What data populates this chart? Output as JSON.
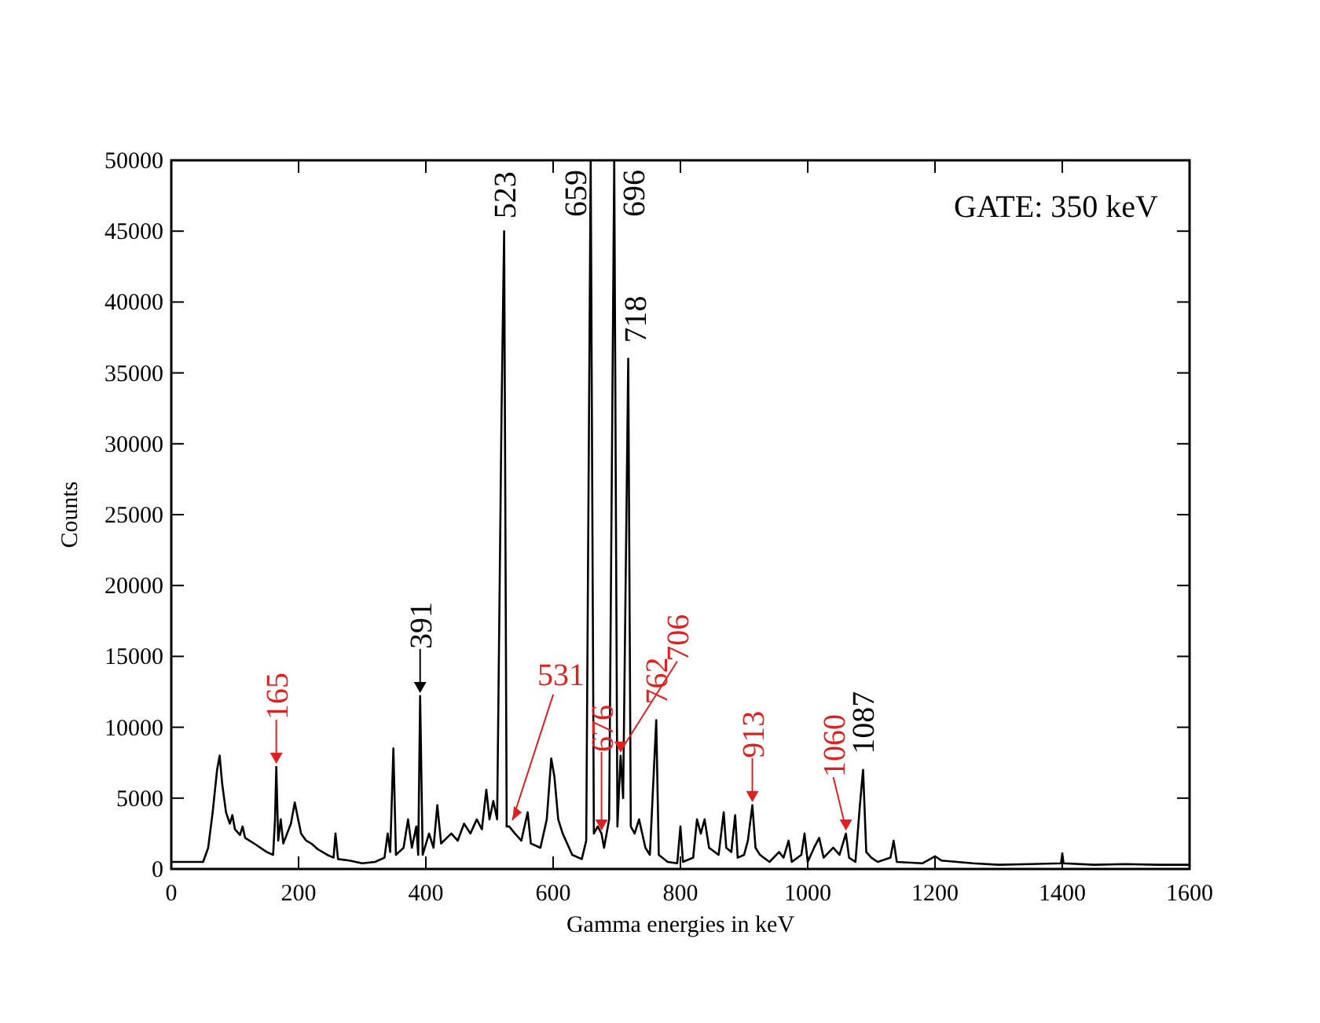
{
  "chart_data": {
    "type": "line",
    "xlabel": "Gamma energies in keV",
    "ylabel": "Counts",
    "xlim": [
      0,
      1600
    ],
    "xticks": [
      0,
      200,
      400,
      600,
      800,
      1000,
      1200,
      1400,
      1600
    ],
    "ylim": [
      0,
      50000
    ],
    "yticks": [
      0,
      5000,
      10000,
      15000,
      20000,
      25000,
      30000,
      35000,
      40000,
      45000,
      50000
    ],
    "grid": false,
    "marker": "none",
    "line_style": "solid",
    "series": [
      {
        "color": "#000000",
        "x": [
          0,
          50,
          58,
          65,
          72,
          76,
          80,
          86,
          92,
          96,
          100,
          108,
          112,
          116,
          130,
          150,
          160,
          163,
          165,
          168,
          172,
          176,
          182,
          188,
          194,
          198,
          204,
          212,
          220,
          230,
          245,
          255,
          258,
          262,
          280,
          300,
          320,
          335,
          340,
          344,
          349,
          353,
          365,
          372,
          378,
          385,
          388,
          391,
          395,
          405,
          412,
          418,
          424,
          440,
          450,
          460,
          470,
          480,
          488,
          495,
          500,
          506,
          512,
          519,
          523,
          527,
          531,
          540,
          550,
          560,
          565,
          580,
          590,
          597,
          602,
          608,
          615,
          630,
          645,
          652,
          659,
          664,
          670,
          676,
          680,
          688,
          696,
          701,
          706,
          710,
          718,
          722,
          728,
          735,
          745,
          752,
          762,
          766,
          780,
          795,
          800,
          804,
          820,
          826,
          832,
          838,
          845,
          860,
          868,
          872,
          880,
          886,
          890,
          900,
          906,
          913,
          918,
          925,
          940,
          955,
          962,
          970,
          975,
          990,
          995,
          1000,
          1010,
          1018,
          1025,
          1040,
          1050,
          1060,
          1065,
          1075,
          1082,
          1087,
          1092,
          1100,
          1110,
          1130,
          1135,
          1140,
          1180,
          1200,
          1210,
          1260,
          1300,
          1350,
          1398,
          1400,
          1402,
          1450,
          1500,
          1550,
          1600
        ],
        "values": [
          500,
          500,
          1500,
          4000,
          7000,
          8000,
          6000,
          4000,
          3200,
          3800,
          2800,
          2400,
          3000,
          2200,
          1800,
          1200,
          1000,
          3500,
          7200,
          2000,
          3500,
          1800,
          2500,
          3200,
          4700,
          3800,
          2500,
          2000,
          1800,
          1400,
          1000,
          800,
          2500,
          700,
          600,
          400,
          500,
          800,
          2500,
          1200,
          8500,
          1000,
          1500,
          3500,
          1500,
          3000,
          1000,
          12200,
          1000,
          2500,
          1500,
          4500,
          1800,
          2500,
          2000,
          3200,
          2500,
          3500,
          2800,
          5600,
          3500,
          4800,
          3500,
          32500,
          45000,
          3000,
          3000,
          2500,
          2000,
          4000,
          1800,
          1500,
          3500,
          7800,
          6500,
          3500,
          2500,
          1000,
          700,
          2000,
          50000,
          2500,
          3000,
          2500,
          1500,
          3500,
          50000,
          3000,
          8000,
          5000,
          36000,
          3000,
          2500,
          3500,
          1500,
          1000,
          10500,
          1000,
          500,
          400,
          3000,
          500,
          800,
          3500,
          2500,
          3500,
          1500,
          1000,
          4000,
          1500,
          1200,
          3800,
          800,
          1000,
          2000,
          4500,
          1500,
          1000,
          500,
          1200,
          800,
          2000,
          500,
          1000,
          2500,
          500,
          1500,
          2200,
          800,
          1500,
          1000,
          2500,
          800,
          500,
          4500,
          7000,
          1200,
          800,
          500,
          800,
          2000,
          500,
          400,
          900,
          600,
          400,
          300,
          350,
          400,
          1100,
          400,
          300,
          350,
          300,
          300
        ]
      }
    ],
    "annotations": [
      "GATE: 350 keV",
      {
        "text": "165",
        "x": 165,
        "y": 7200
      },
      {
        "text": "391",
        "x": 391,
        "y": 12200
      },
      {
        "text": "523",
        "x": 523,
        "y": 45000
      },
      {
        "text": "531",
        "x": 531,
        "y": 3000
      },
      {
        "text": "659",
        "x": 659,
        "y": 50000
      },
      {
        "text": "676",
        "x": 676,
        "y": 2500
      },
      {
        "text": "696",
        "x": 696,
        "y": 50000
      },
      {
        "text": "706",
        "x": 706,
        "y": 8000
      },
      {
        "text": "718",
        "x": 718,
        "y": 36000
      },
      {
        "text": "762",
        "x": 762,
        "y": 10500
      },
      {
        "text": "913",
        "x": 913,
        "y": 4500
      },
      {
        "text": "1060",
        "x": 1060,
        "y": 2500
      },
      {
        "text": "1087",
        "x": 1087,
        "y": 7000
      }
    ]
  }
}
